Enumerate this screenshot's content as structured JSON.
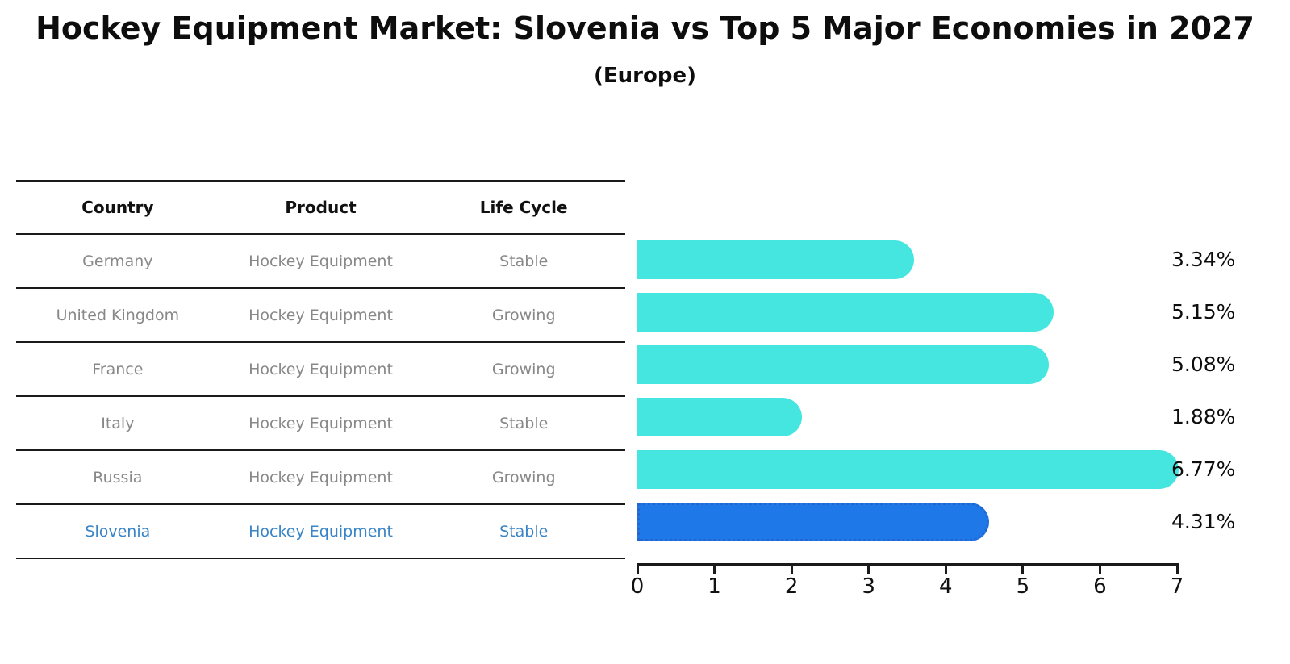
{
  "title": "Hockey Equipment Market: Slovenia vs Top 5 Major Economies in 2027",
  "subtitle": "(Europe)",
  "table": {
    "headers": [
      "Country",
      "Product",
      "Life Cycle"
    ],
    "rows": [
      {
        "country": "Germany",
        "product": "Hockey Equipment",
        "life_cycle": "Stable",
        "highlight": false
      },
      {
        "country": "United Kingdom",
        "product": "Hockey Equipment",
        "life_cycle": "Growing",
        "highlight": false
      },
      {
        "country": "France",
        "product": "Hockey Equipment",
        "life_cycle": "Growing",
        "highlight": false
      },
      {
        "country": "Italy",
        "product": "Hockey Equipment",
        "life_cycle": "Stable",
        "highlight": false
      },
      {
        "country": "Russia",
        "product": "Hockey Equipment",
        "life_cycle": "Growing",
        "highlight": false
      },
      {
        "country": "Slovenia",
        "product": "Hockey Equipment",
        "life_cycle": "Stable",
        "highlight": true
      }
    ]
  },
  "chart_data": {
    "type": "bar",
    "orientation": "horizontal",
    "title": "Hockey Equipment Market: Slovenia vs Top 5 Major Economies in 2027 (Europe)",
    "categories": [
      "Germany",
      "United Kingdom",
      "France",
      "Italy",
      "Russia",
      "Slovenia"
    ],
    "values": [
      3.34,
      5.15,
      5.08,
      1.88,
      6.77,
      4.31
    ],
    "value_labels": [
      "3.34%",
      "5.15%",
      "5.08%",
      "1.88%",
      "6.77%",
      "4.31%"
    ],
    "xlabel": "",
    "ylabel": "",
    "xlim": [
      0,
      7
    ],
    "xticks": [
      0,
      1,
      2,
      3,
      4,
      5,
      6,
      7
    ],
    "grid": false,
    "legend": false,
    "highlight_index": 5
  },
  "colors": {
    "bar": "#45E6E0",
    "highlight_bar": "#1E78E8",
    "highlight_border": "#2366D2",
    "highlight_text": "#3884C6",
    "table_text": "#888888",
    "header_text": "#111111",
    "axis": "#1A1A1A"
  }
}
